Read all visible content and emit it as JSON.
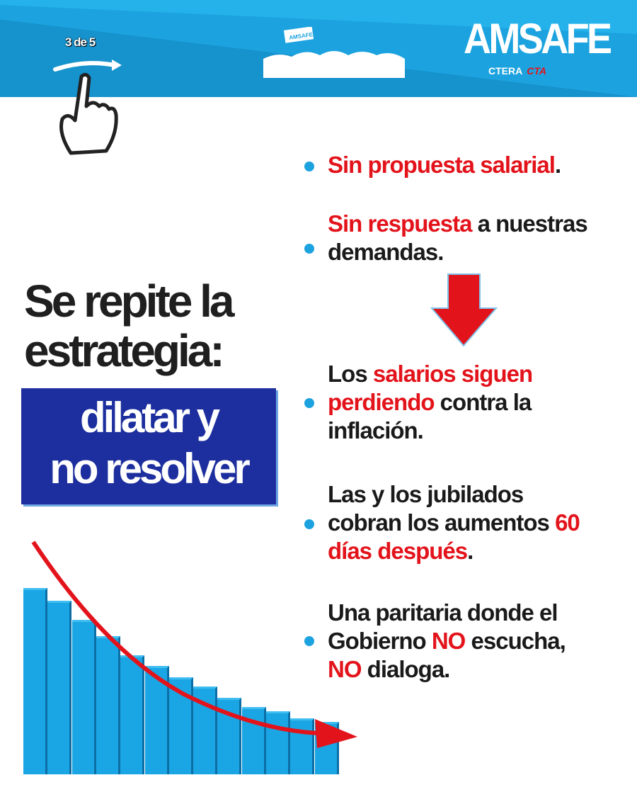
{
  "header": {
    "page_counter": "3 de 5",
    "logo": "AMSAFE",
    "crowd_banner": "AMSAFE",
    "affiliations": [
      "CTERA",
      "CTA"
    ]
  },
  "headline": {
    "line1": "Se repite la",
    "line2": "estrategia:",
    "box_line1": "dilatar y",
    "box_line2": "no resolver"
  },
  "items": [
    {
      "parts": [
        {
          "t": "Sin propuesta salarial",
          "red": true
        },
        {
          "t": ".",
          "red": false
        }
      ]
    },
    {
      "line1_red": "Sin respuesta",
      "line1_rest": " a nuestras",
      "line2": "demandas."
    },
    {
      "l1a": "Los ",
      "l1b": "salarios siguen",
      "l2a": "perdiendo",
      "l2b": " contra la",
      "l3": "inflación."
    },
    {
      "l1": "Las y los jubilados",
      "l2a": "cobran los aumentos ",
      "l2b": "60",
      "l3a": "días después",
      "l3b": "."
    },
    {
      "l1": "Una paritaria donde el",
      "l2a": "Gobierno ",
      "l2b": "NO",
      "l2c": " escucha,",
      "l3a": "NO",
      "l3b": " dialoga."
    }
  ],
  "colors": {
    "blue": "#1ca3df",
    "red": "#e3131b",
    "navy": "#1d2f9e"
  },
  "decor_bars": [
    100,
    93,
    83,
    74,
    64,
    58,
    52,
    47,
    41,
    36,
    34,
    30,
    28
  ]
}
